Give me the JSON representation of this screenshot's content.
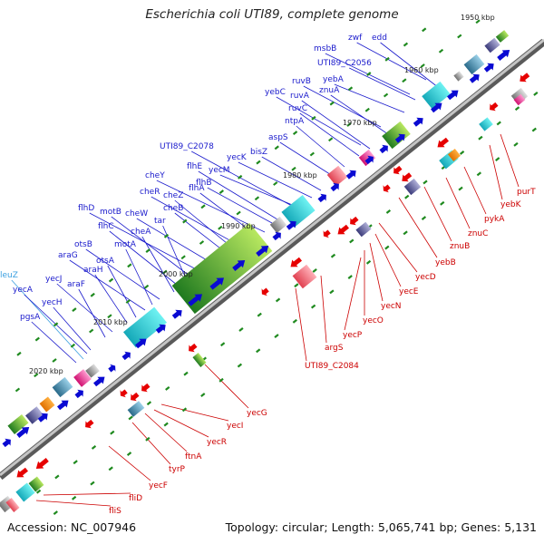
{
  "title": "Escherichia coli UTI89, complete genome",
  "accession": "Accession: NC_007946",
  "summary": "Topology: circular; Length: 5,065,741 bp; Genes: 5,131",
  "colors": {
    "forward_label": "#1a1acc",
    "reverse_label": "#cc0000",
    "forward_arrow": "#0a0ad2",
    "reverse_arrow": "#e60000",
    "backbone": "#888888",
    "tick": "#1f8a1f",
    "highlight_label": "#3a9fe0"
  },
  "scale_labels": [
    "1950 kbp",
    "1960 kbp",
    "1970 kbp",
    "1980 kbp",
    "1990 kbp",
    "2000 kbp",
    "2010 kbp",
    "2020 kbp"
  ],
  "forward_genes": [
    "zwf",
    "edd",
    "msbB",
    "UTI89_C2056",
    "yebA",
    "ruvB",
    "znuA",
    "yebC",
    "ruvA",
    "ruvC",
    "ntpA",
    "aspS",
    "bisZ",
    "yecK",
    "UTI89_C2078",
    "yecM",
    "flhE",
    "flhB",
    "cheY",
    "flhA",
    "cheR",
    "cheZ",
    "cheB",
    "cheW",
    "flhD",
    "motB",
    "tar",
    "flhC",
    "cheA",
    "otsB",
    "motA",
    "araG",
    "otsA",
    "araH",
    "yecJ",
    "araF",
    "leuZ",
    "yecA",
    "yecH",
    "pgsA"
  ],
  "reverse_genes": [
    "purT",
    "yebK",
    "pykA",
    "znuC",
    "znuB",
    "yebB",
    "yecD",
    "yecE",
    "yecN",
    "yecO",
    "yecP",
    "argS",
    "UTI89_C2084",
    "yecG",
    "yecI",
    "yecR",
    "ftnA",
    "tyrP",
    "yecF",
    "fliD",
    "fliS"
  ]
}
